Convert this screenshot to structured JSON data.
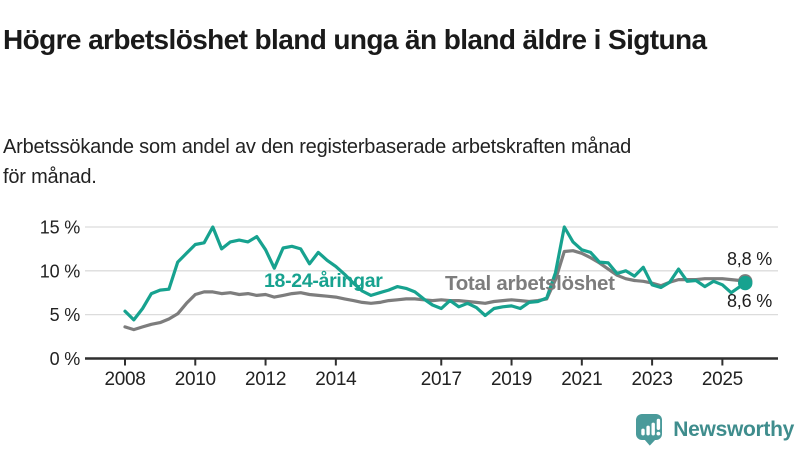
{
  "header": {
    "title": "Högre arbetslöshet bland unga än bland äldre i Sigtuna",
    "subtitle": "Arbetssökande som andel av den registerbaserade arbetskraften månad för månad."
  },
  "branding": {
    "logo_text": "Newsworthy",
    "logo_icon": "chart-in-speech-bubble",
    "brand_color": "#4a9a9a"
  },
  "chart_data": {
    "type": "line",
    "title": "Högre arbetslöshet bland unga än bland äldre i Sigtuna",
    "xlabel": "",
    "ylabel": "",
    "ylim": [
      0,
      16.5
    ],
    "xlim": [
      2006.9,
      2026.6
    ],
    "grid": "horizontal",
    "legend_position": "inline-labels",
    "y_ticks": [
      0,
      5,
      10,
      15
    ],
    "y_tick_suffix": " %",
    "x_tick_years": [
      2008,
      2010,
      2012,
      2014,
      2017,
      2019,
      2021,
      2023,
      2025
    ],
    "x": [
      2008.0,
      2008.25,
      2008.5,
      2008.75,
      2009.0,
      2009.25,
      2009.5,
      2009.75,
      2010.0,
      2010.25,
      2010.5,
      2010.75,
      2011.0,
      2011.25,
      2011.5,
      2011.75,
      2012.0,
      2012.25,
      2012.5,
      2012.75,
      2013.0,
      2013.25,
      2013.5,
      2013.75,
      2014.0,
      2014.25,
      2014.5,
      2014.75,
      2015.0,
      2015.25,
      2015.5,
      2015.75,
      2016.0,
      2016.25,
      2016.5,
      2016.75,
      2017.0,
      2017.25,
      2017.5,
      2017.75,
      2018.0,
      2018.25,
      2018.5,
      2018.75,
      2019.0,
      2019.25,
      2019.5,
      2019.75,
      2020.0,
      2020.25,
      2020.5,
      2020.75,
      2021.0,
      2021.25,
      2021.5,
      2021.75,
      2022.0,
      2022.25,
      2022.5,
      2022.75,
      2023.0,
      2023.25,
      2023.5,
      2023.75,
      2024.0,
      2024.25,
      2024.5,
      2024.75,
      2025.0,
      2025.25,
      2025.5,
      2025.65
    ],
    "series": [
      {
        "name": "18-24-åringar",
        "color": "#17a28f",
        "end_value_label": "8,6 %",
        "values": [
          5.4,
          4.4,
          5.7,
          7.4,
          7.8,
          7.9,
          11.0,
          12.0,
          13.0,
          13.2,
          15.0,
          12.5,
          13.3,
          13.5,
          13.3,
          13.9,
          12.4,
          10.3,
          12.6,
          12.8,
          12.5,
          10.8,
          12.1,
          11.2,
          10.5,
          9.6,
          8.6,
          7.7,
          7.2,
          7.5,
          7.8,
          8.2,
          8.0,
          7.6,
          6.8,
          6.1,
          5.7,
          6.6,
          5.9,
          6.3,
          5.8,
          4.9,
          5.7,
          5.9,
          6.0,
          5.7,
          6.4,
          6.5,
          6.9,
          9.8,
          15.0,
          13.3,
          12.4,
          12.1,
          11.0,
          10.9,
          9.7,
          10.0,
          9.4,
          10.4,
          8.4,
          8.1,
          8.7,
          10.2,
          8.8,
          8.9,
          8.2,
          8.8,
          8.4,
          7.5,
          8.2,
          8.6
        ],
        "label_pos": {
          "x": 264,
          "y": 87
        }
      },
      {
        "name": "Total arbetslöshet",
        "color": "#7d7d7d",
        "end_value_label": "8,8 %",
        "values": [
          3.6,
          3.3,
          3.6,
          3.9,
          4.1,
          4.5,
          5.1,
          6.3,
          7.3,
          7.6,
          7.6,
          7.4,
          7.5,
          7.3,
          7.4,
          7.2,
          7.3,
          7.0,
          7.2,
          7.4,
          7.5,
          7.3,
          7.2,
          7.1,
          7.0,
          6.8,
          6.6,
          6.4,
          6.3,
          6.4,
          6.6,
          6.7,
          6.8,
          6.8,
          6.7,
          6.6,
          6.7,
          6.6,
          6.6,
          6.5,
          6.4,
          6.3,
          6.5,
          6.6,
          6.7,
          6.6,
          6.5,
          6.6,
          6.8,
          9.0,
          12.2,
          12.3,
          12.0,
          11.5,
          10.9,
          10.2,
          9.5,
          9.1,
          8.9,
          8.8,
          8.6,
          8.3,
          8.7,
          9.0,
          9.0,
          9.0,
          9.1,
          9.1,
          9.1,
          9.0,
          8.9,
          8.8
        ],
        "label_pos": {
          "x": 445,
          "y": 90
        }
      }
    ],
    "end_value_labels": [
      {
        "text": "8,8 %",
        "x": 772,
        "y": 65
      },
      {
        "text": "8,6 %",
        "x": 772,
        "y": 107
      }
    ]
  }
}
